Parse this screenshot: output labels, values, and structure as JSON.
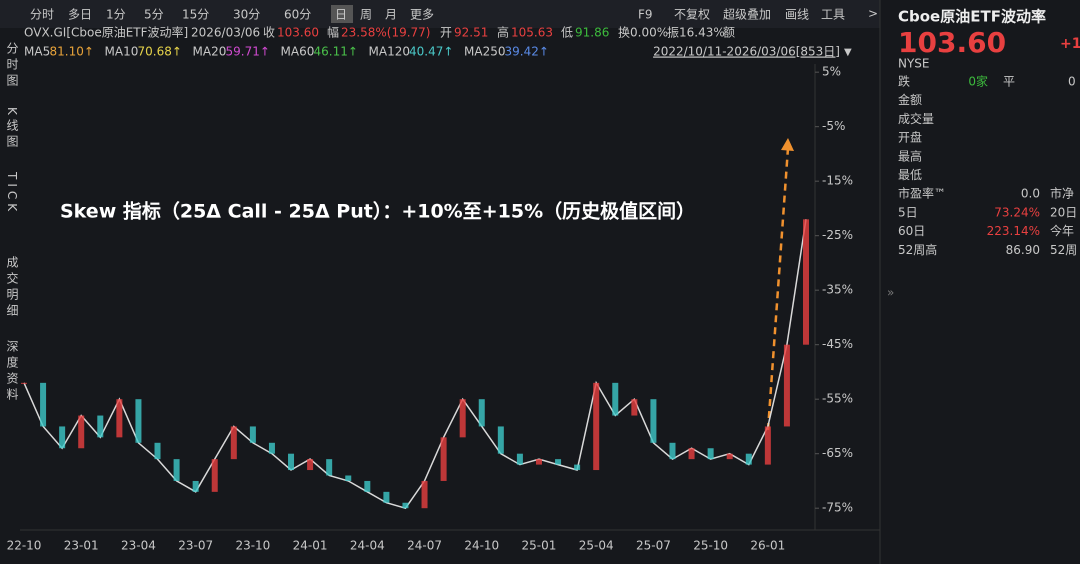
{
  "toolbar": {
    "periods": [
      "分时",
      "多日",
      "1分",
      "5分",
      "15分",
      "30分",
      "60分",
      "日",
      "周",
      "月",
      "更多"
    ],
    "tools": [
      "F9",
      "不复权",
      "超级叠加",
      "画线",
      "工具"
    ]
  },
  "side_tabs": [
    "分时图",
    "K线图",
    "TICK",
    "成交明细",
    "深度资料"
  ],
  "quote_line": [
    "OVX.GI[Cboe原油ETF波动率]",
    "2026/03/06",
    "收",
    "103.60",
    "幅",
    "23.58%(19.77)",
    "开",
    "92.51",
    "高",
    "105.63",
    "低",
    "91.86",
    "换0.00%",
    "振16.43%",
    "额"
  ],
  "ma": [
    {
      "label": "MA5",
      "value": "81.10↑",
      "color": "#e8a33a"
    },
    {
      "label": "MA10",
      "value": "70.68↑",
      "color": "#e6d34a"
    },
    {
      "label": "MA20",
      "value": "59.71↑",
      "color": "#d04ad0"
    },
    {
      "label": "MA60",
      "value": "46.11↑",
      "color": "#4ac04a"
    },
    {
      "label": "MA120",
      "value": "40.47↑",
      "color": "#4ac8c8"
    },
    {
      "label": "MA250",
      "value": "39.42↑",
      "color": "#5a8ae6"
    }
  ],
  "range": "2022/10/11-2026/03/06[853日]",
  "panel": {
    "name": "Cboe原油ETF波动率",
    "price": "103.60",
    "change": "+1",
    "exchange": "NYSE",
    "rows": [
      [
        "跌",
        "0家",
        "平",
        "0"
      ],
      [
        "金额",
        "",
        "",
        ""
      ],
      [
        "成交量",
        "",
        "",
        ""
      ],
      [
        "开盘",
        "",
        "",
        ""
      ],
      [
        "最高",
        "",
        "",
        ""
      ],
      [
        "最低",
        "",
        "",
        ""
      ],
      [
        "市盈率™",
        "0.0",
        "市净",
        ""
      ],
      [
        "5日",
        "73.24%",
        "20日",
        ""
      ],
      [
        "60日",
        "223.14%",
        "今年",
        ""
      ],
      [
        "52周高",
        "86.90",
        "52周",
        ""
      ]
    ]
  },
  "chart_data": {
    "type": "line",
    "annotation": "Skew 指标（25Δ Call - 25Δ Put）：+10%至+15%（历史极值区间）",
    "categories": [
      "22-10",
      null,
      null,
      "23-01",
      null,
      null,
      "23-04",
      null,
      null,
      "23-07",
      null,
      null,
      "23-10",
      null,
      null,
      "24-01",
      null,
      null,
      "24-04",
      null,
      null,
      "24-07",
      null,
      null,
      "24-10",
      null,
      null,
      "25-01",
      null,
      null,
      "25-04",
      null,
      null,
      "25-07",
      null,
      null,
      "25-10",
      null,
      null,
      "26-01",
      null,
      null
    ],
    "series": [
      {
        "color": "#d9d9d9",
        "values": [
          -52,
          -60,
          -64,
          -58,
          -62,
          -55,
          -63,
          -66,
          -70,
          -72,
          -66,
          -60,
          -63,
          -65,
          -68,
          -66,
          -69,
          -70,
          -72,
          -74,
          -75,
          -70,
          -62,
          -55,
          -60,
          -65,
          -67,
          -66,
          -67,
          -68,
          -52,
          -58,
          -55,
          -63,
          -66,
          -64,
          -66,
          -65,
          -67,
          -60,
          -45,
          -22
        ]
      }
    ],
    "ylim": [
      -79,
      6.5
    ],
    "yticks": [
      {
        "value": 5,
        "label": "5%"
      },
      {
        "value": -5,
        "label": "-5%"
      },
      {
        "value": -15,
        "label": "-15%"
      },
      {
        "value": -25,
        "label": "-25%"
      },
      {
        "value": -35,
        "label": "-35%"
      },
      {
        "value": -45,
        "label": "-45%"
      },
      {
        "value": -55,
        "label": "-55%"
      },
      {
        "value": -65,
        "label": "-65%"
      },
      {
        "value": -75,
        "label": "-75%"
      }
    ]
  }
}
